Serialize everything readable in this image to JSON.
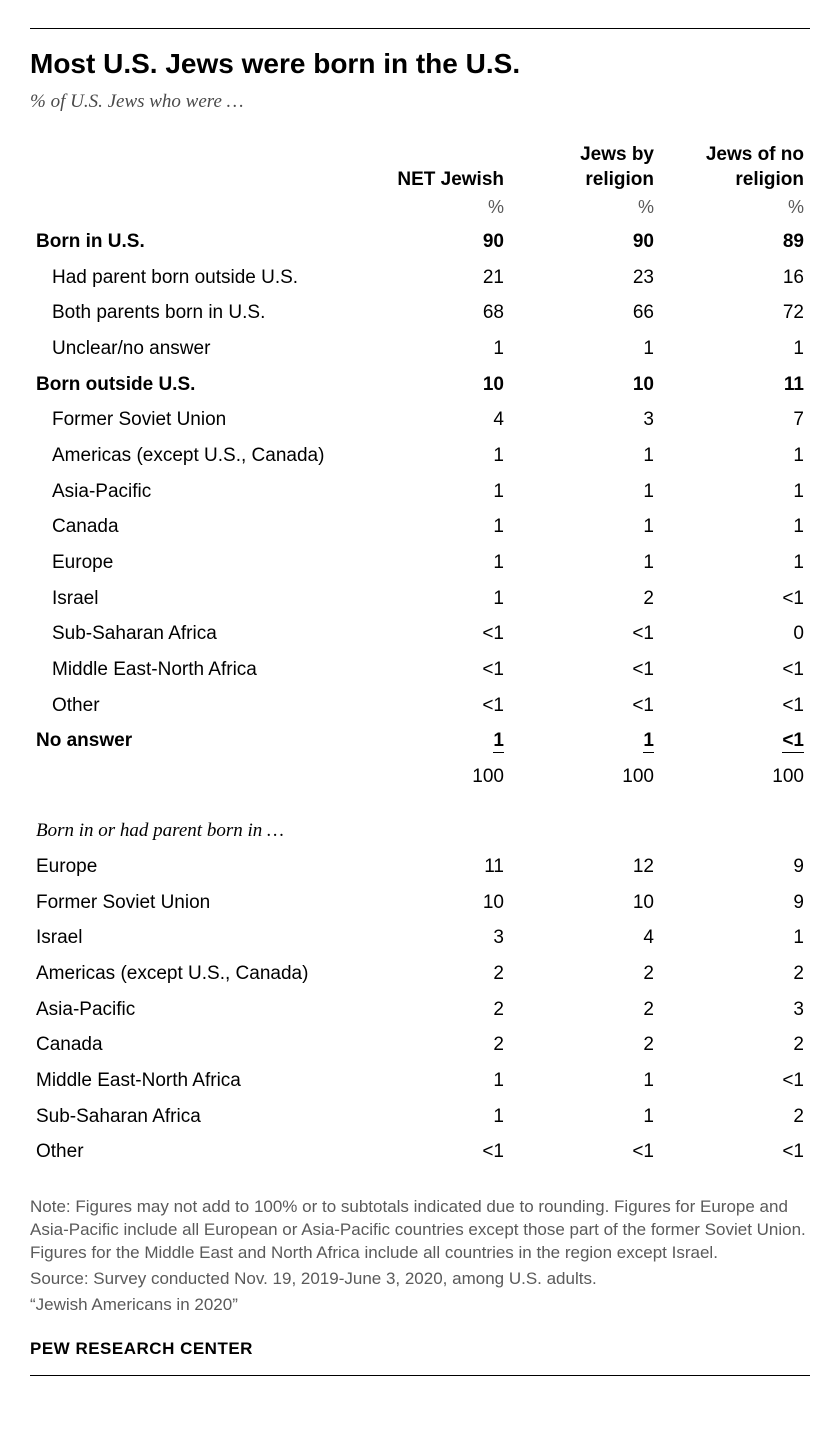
{
  "title": "Most U.S. Jews were born in the U.S.",
  "subtitle": "% of U.S. Jews who were …",
  "columns": [
    {
      "label": "NET Jewish",
      "unit": "%"
    },
    {
      "label": "Jews by religion",
      "unit": "%"
    },
    {
      "label": "Jews of no religion",
      "unit": "%"
    }
  ],
  "sections": [
    {
      "header": {
        "label": "Born in U.S.",
        "vals": [
          "90",
          "90",
          "89"
        ]
      },
      "rows": [
        {
          "label": "Had parent born outside U.S.",
          "vals": [
            "21",
            "23",
            "16"
          ]
        },
        {
          "label": "Both parents born in U.S.",
          "vals": [
            "68",
            "66",
            "72"
          ]
        },
        {
          "label": "Unclear/no answer",
          "vals": [
            "1",
            "1",
            "1"
          ]
        }
      ]
    },
    {
      "header": {
        "label": "Born outside U.S.",
        "vals": [
          "10",
          "10",
          "11"
        ]
      },
      "rows": [
        {
          "label": "Former Soviet Union",
          "vals": [
            "4",
            "3",
            "7"
          ]
        },
        {
          "label": "Americas (except U.S., Canada)",
          "vals": [
            "1",
            "1",
            "1"
          ]
        },
        {
          "label": "Asia-Pacific",
          "vals": [
            "1",
            "1",
            "1"
          ]
        },
        {
          "label": "Canada",
          "vals": [
            "1",
            "1",
            "1"
          ]
        },
        {
          "label": "Europe",
          "vals": [
            "1",
            "1",
            "1"
          ]
        },
        {
          "label": "Israel",
          "vals": [
            "1",
            "2",
            "<1"
          ]
        },
        {
          "label": "Sub-Saharan Africa",
          "vals": [
            "<1",
            "<1",
            "0"
          ]
        },
        {
          "label": "Middle East-North Africa",
          "vals": [
            "<1",
            "<1",
            "<1"
          ]
        },
        {
          "label": "Other",
          "vals": [
            "<1",
            "<1",
            "<1"
          ]
        }
      ]
    }
  ],
  "no_answer": {
    "label": "No answer",
    "vals": [
      "1",
      "1",
      "<1"
    ]
  },
  "total": {
    "label": "",
    "vals": [
      "100",
      "100",
      "100"
    ]
  },
  "subheader": "Born in or had parent born in …",
  "subrows": [
    {
      "label": "Europe",
      "vals": [
        "11",
        "12",
        "9"
      ]
    },
    {
      "label": "Former Soviet Union",
      "vals": [
        "10",
        "10",
        "9"
      ]
    },
    {
      "label": "Israel",
      "vals": [
        "3",
        "4",
        "1"
      ]
    },
    {
      "label": "Americas (except U.S., Canada)",
      "vals": [
        "2",
        "2",
        "2"
      ]
    },
    {
      "label": "Asia-Pacific",
      "vals": [
        "2",
        "2",
        "3"
      ]
    },
    {
      "label": "Canada",
      "vals": [
        "2",
        "2",
        "2"
      ]
    },
    {
      "label": "Middle East-North Africa",
      "vals": [
        "1",
        "1",
        "<1"
      ]
    },
    {
      "label": "Sub-Saharan Africa",
      "vals": [
        "1",
        "1",
        "2"
      ]
    },
    {
      "label": "Other",
      "vals": [
        "<1",
        "<1",
        "<1"
      ]
    }
  ],
  "notes": [
    "Note: Figures may not add to 100% or to subtotals indicated due to rounding. Figures for Europe and Asia-Pacific include all European or Asia-Pacific countries except those part of the former Soviet Union. Figures for the Middle East and North Africa include all countries in the region except Israel.",
    "Source: Survey conducted Nov. 19, 2019-June 3, 2020, among U.S. adults.",
    "“Jewish Americans in 2020”"
  ],
  "brand": "PEW RESEARCH CENTER"
}
